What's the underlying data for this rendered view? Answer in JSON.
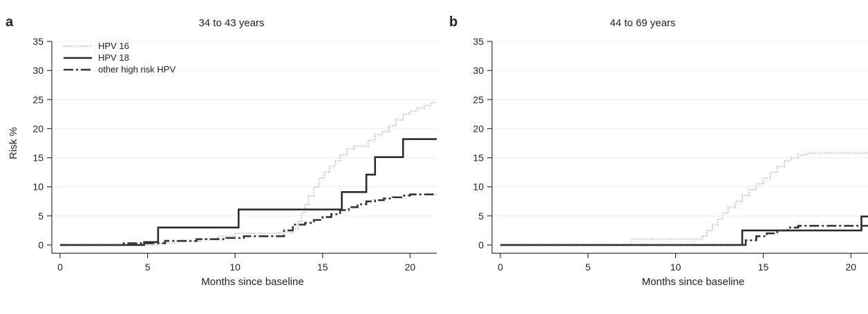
{
  "figure": {
    "panels": [
      {
        "letter": "a",
        "title": "34 to 43 years",
        "xlabel": "Months since baseline",
        "ylabel": "Risk %"
      },
      {
        "letter": "b",
        "title": "44 to 69 years",
        "xlabel": "Months since baseline",
        "ylabel": ""
      }
    ]
  },
  "chart_data": [
    {
      "type": "line",
      "title": "34 to 43 years",
      "xlabel": "Months since baseline",
      "ylabel": "Risk %",
      "xlim": [
        0,
        22
      ],
      "ylim": [
        0,
        35
      ],
      "xticks": [
        0,
        5,
        10,
        15,
        20
      ],
      "yticks": [
        0,
        5,
        10,
        15,
        20,
        25,
        30,
        35
      ],
      "grid": "horizontal",
      "legend_position": "top-left",
      "series": [
        {
          "name": "HPV 16",
          "style": "dotted",
          "color": "#b5b5b5",
          "step": true,
          "x": [
            0,
            5.6,
            6.5,
            8.0,
            9.0,
            10.0,
            11.0,
            12.5,
            13.3,
            13.6,
            13.8,
            14.0,
            14.2,
            14.5,
            14.8,
            15.1,
            15.4,
            15.7,
            16.0,
            16.4,
            16.8,
            17.2,
            17.6,
            18.0,
            18.4,
            18.8,
            19.2,
            19.6,
            20.0,
            20.4,
            20.8,
            21.2,
            22.0
          ],
          "y": [
            0,
            0.3,
            0.6,
            1.0,
            1.5,
            2.0,
            2.0,
            2.1,
            2.8,
            4.0,
            5.5,
            7.0,
            8.5,
            10.0,
            11.5,
            12.5,
            13.5,
            14.5,
            15.5,
            16.5,
            17.0,
            17.0,
            18.0,
            19.0,
            19.5,
            20.5,
            21.5,
            22.5,
            23.0,
            23.5,
            24.0,
            24.5,
            24.5
          ]
        },
        {
          "name": "HPV 18",
          "style": "solid",
          "color": "#2b2b2b",
          "step": true,
          "x": [
            0,
            4.8,
            5.6,
            10.2,
            16.1,
            17.5,
            18.0,
            19.6,
            22.0
          ],
          "y": [
            0,
            0.5,
            3.0,
            6.1,
            9.1,
            12.1,
            15.1,
            18.2,
            18.2
          ]
        },
        {
          "name": "other high risk HPV",
          "style": "dashdot",
          "color": "#333333",
          "step": true,
          "x": [
            0,
            3.5,
            6.0,
            7.8,
            9.5,
            10.5,
            12.8,
            13.3,
            14.0,
            14.5,
            15.0,
            15.5,
            16.0,
            16.5,
            17.0,
            17.5,
            18.0,
            18.5,
            19.0,
            19.5,
            20.0,
            22.0
          ],
          "y": [
            0,
            0.3,
            0.7,
            1.0,
            1.2,
            1.5,
            2.5,
            3.5,
            3.8,
            4.3,
            4.8,
            5.3,
            6.0,
            6.5,
            7.0,
            7.5,
            7.7,
            8.0,
            8.2,
            8.5,
            8.7,
            8.7
          ]
        }
      ]
    },
    {
      "type": "line",
      "title": "44 to 69 years",
      "xlabel": "Months since baseline",
      "ylabel": "",
      "xlim": [
        0,
        22
      ],
      "ylim": [
        0,
        35
      ],
      "xticks": [
        0,
        5,
        10,
        15,
        20
      ],
      "yticks": [
        0,
        5,
        10,
        15,
        20,
        25,
        30,
        35
      ],
      "grid": "horizontal",
      "series": [
        {
          "name": "HPV 16",
          "style": "dotted",
          "color": "#b5b5b5",
          "step": true,
          "x": [
            0,
            7.5,
            11.0,
            11.5,
            11.8,
            12.1,
            12.4,
            12.7,
            13.0,
            13.4,
            13.8,
            14.2,
            14.6,
            15.0,
            15.4,
            15.8,
            16.2,
            16.6,
            17.0,
            17.5,
            21.0
          ],
          "y": [
            0,
            1.0,
            1.0,
            1.5,
            2.5,
            3.5,
            4.5,
            5.5,
            6.5,
            7.5,
            8.5,
            9.5,
            10.5,
            11.5,
            12.5,
            13.5,
            14.5,
            15.0,
            15.5,
            15.8,
            15.8
          ]
        },
        {
          "name": "HPV 18",
          "style": "solid",
          "color": "#2b2b2b",
          "step": true,
          "x": [
            0,
            13.8,
            20.6,
            22.0
          ],
          "y": [
            0,
            2.5,
            4.9,
            4.9
          ]
        },
        {
          "name": "other high risk HPV",
          "style": "dashdot",
          "color": "#333333",
          "step": true,
          "x": [
            0,
            14.0,
            14.6,
            15.2,
            15.8,
            16.4,
            17.0,
            22.0
          ],
          "y": [
            0,
            0.8,
            1.5,
            2.0,
            2.5,
            3.0,
            3.3,
            3.3
          ]
        }
      ]
    }
  ]
}
